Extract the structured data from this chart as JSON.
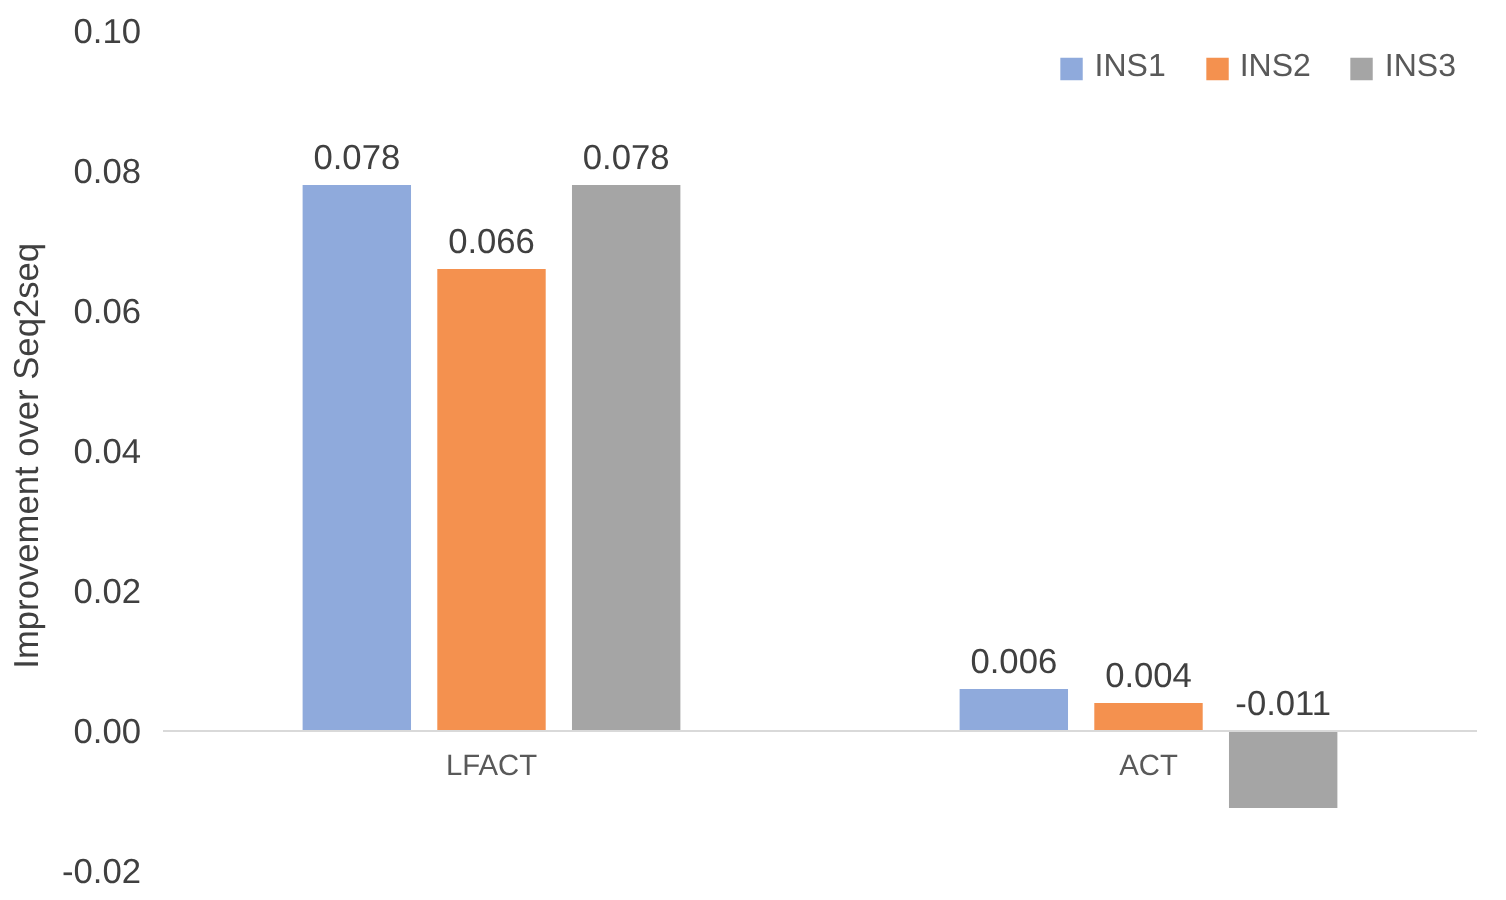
{
  "chart_data": {
    "type": "bar",
    "ylabel": "Improvement  over Seq2seq",
    "categories": [
      "LFACT",
      "ACT"
    ],
    "series": [
      {
        "name": "INS1",
        "color": "#8faadc",
        "values": [
          0.078,
          0.006
        ]
      },
      {
        "name": "INS2",
        "color": "#f4914f",
        "values": [
          0.066,
          0.004
        ]
      },
      {
        "name": "INS3",
        "color": "#a5a5a5",
        "values": [
          0.078,
          -0.011
        ]
      }
    ],
    "ylim": [
      -0.02,
      0.1
    ],
    "yticks": [
      {
        "value": -0.02,
        "label": "-0.02"
      },
      {
        "value": 0,
        "label": "0.00"
      },
      {
        "value": 0.02,
        "label": "0.02"
      },
      {
        "value": 0.04,
        "label": "0.04"
      },
      {
        "value": 0.06,
        "label": "0.06"
      },
      {
        "value": 0.08,
        "label": "0.08"
      },
      {
        "value": 0.1,
        "label": "0.10"
      }
    ],
    "data_labels": true,
    "legend": "top right",
    "grid": false
  }
}
